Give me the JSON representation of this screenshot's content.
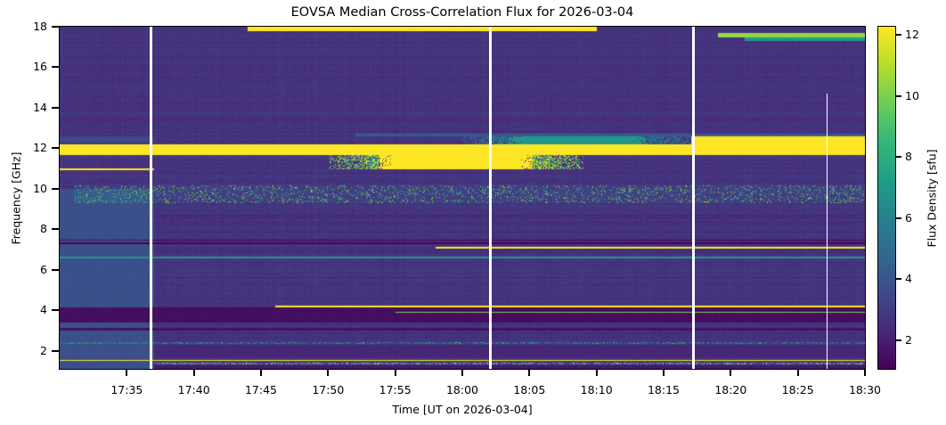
{
  "chart_data": {
    "type": "heatmap",
    "title": "EOVSA Median Cross-Correlation Flux for 2026-03-04",
    "xlabel": "Time [UT on 2026-03-04]",
    "ylabel": "Frequency [GHz]",
    "colorbar_label": "Flux Density [sfu]",
    "colormap": "viridis",
    "xlim": [
      "17:30",
      "18:30"
    ],
    "ylim": [
      1.1,
      18.0
    ],
    "clim": [
      1.07,
      12.26
    ],
    "xticks": [
      "17:35",
      "17:40",
      "17:45",
      "17:50",
      "17:55",
      "18:00",
      "18:05",
      "18:10",
      "18:15",
      "18:20",
      "18:25",
      "18:30"
    ],
    "yticks": [
      2,
      4,
      6,
      8,
      10,
      12,
      14,
      16,
      18
    ],
    "cbar_ticks": [
      2,
      4,
      6,
      8,
      10,
      12
    ],
    "background_sfu": 2.7,
    "features": [
      {
        "freq": [
          1.7,
          2.3
        ],
        "time": [
          "17:30",
          "18:30"
        ],
        "value": 2.3
      },
      {
        "freq": [
          1.1,
          1.3
        ],
        "time": [
          "17:30",
          "18:30"
        ],
        "value": 1.8
      },
      {
        "freq": [
          1.1,
          10.0
        ],
        "time": [
          "17:30",
          "17:37"
        ],
        "value": 3.8
      },
      {
        "freq": [
          12.3,
          12.6
        ],
        "time": [
          "17:30",
          "17:37"
        ],
        "value": 3.6
      },
      {
        "freq": [
          3.4,
          4.15
        ],
        "time": [
          "17:30",
          "18:30"
        ],
        "value": 1.5
      },
      {
        "freq": [
          3.0,
          3.15
        ],
        "time": [
          "17:30",
          "18:30"
        ],
        "value": 1.6
      },
      {
        "freq": [
          7.3,
          7.36
        ],
        "time": [
          "17:30",
          "18:30"
        ],
        "value": 1.2
      },
      {
        "freq": [
          7.45,
          7.5
        ],
        "time": [
          "17:30",
          "18:30"
        ],
        "value": 1.4
      },
      {
        "freq": [
          12.6,
          12.75
        ],
        "time": [
          "17:52",
          "18:30"
        ],
        "value": 4.2
      },
      {
        "freq": [
          11.7,
          12.2
        ],
        "time": [
          "17:30",
          "18:30"
        ],
        "value": 12.5
      },
      {
        "freq": [
          11.0,
          11.7
        ],
        "time": [
          "17:50",
          "18:09"
        ],
        "value": 12.5,
        "taper": true
      },
      {
        "freq": [
          10.93,
          11.03
        ],
        "time": [
          "17:30",
          "17:37"
        ],
        "value": 12.5
      },
      {
        "freq": [
          12.2,
          12.6
        ],
        "time": [
          "18:00",
          "18:17"
        ],
        "value": 7.0,
        "taper": true
      },
      {
        "freq": [
          12.2,
          12.6
        ],
        "time": [
          "18:17",
          "18:30"
        ],
        "value": 12.5
      },
      {
        "freq": [
          17.8,
          18.0
        ],
        "time": [
          "17:44",
          "18:10"
        ],
        "value": 12.5
      },
      {
        "freq": [
          17.5,
          17.7
        ],
        "time": [
          "18:19",
          "18:30"
        ],
        "value": 10.5
      },
      {
        "freq": [
          17.3,
          17.5
        ],
        "time": [
          "18:21",
          "18:30"
        ],
        "value": 7.0
      },
      {
        "freq": [
          9.3,
          10.2
        ],
        "time": [
          "17:31",
          "18:30"
        ],
        "value": 11.5,
        "speckle": 0.12
      },
      {
        "freq": [
          7.05,
          7.15
        ],
        "time": [
          "17:58",
          "18:30"
        ],
        "value": 12.5
      },
      {
        "freq": [
          6.6,
          6.68
        ],
        "time": [
          "17:30",
          "18:30"
        ],
        "value": 7.0
      },
      {
        "freq": [
          4.15,
          4.25
        ],
        "time": [
          "17:46",
          "18:30"
        ],
        "value": 12.5
      },
      {
        "freq": [
          3.88,
          3.96
        ],
        "time": [
          "17:55",
          "18:30"
        ],
        "value": 10.0
      },
      {
        "freq": [
          2.35,
          2.45
        ],
        "time": [
          "17:30",
          "18:30"
        ],
        "value": 9.0,
        "speckle": 0.3
      },
      {
        "freq": [
          1.5,
          1.58
        ],
        "time": [
          "17:30",
          "18:30"
        ],
        "value": 12.5
      },
      {
        "freq": [
          1.36,
          1.42
        ],
        "time": [
          "17:37",
          "18:30"
        ],
        "value": 11.0,
        "speckle": 0.45
      }
    ],
    "data_gaps": [
      {
        "time": "17:36.8",
        "freq": [
          1.1,
          18.0
        ]
      },
      {
        "time": "18:02.1",
        "freq": [
          1.1,
          18.0
        ]
      },
      {
        "time": "18:17.2",
        "freq": [
          1.1,
          18.0
        ]
      },
      {
        "time": "18:27.2",
        "freq": [
          1.1,
          14.7
        ],
        "thin": true
      }
    ]
  }
}
